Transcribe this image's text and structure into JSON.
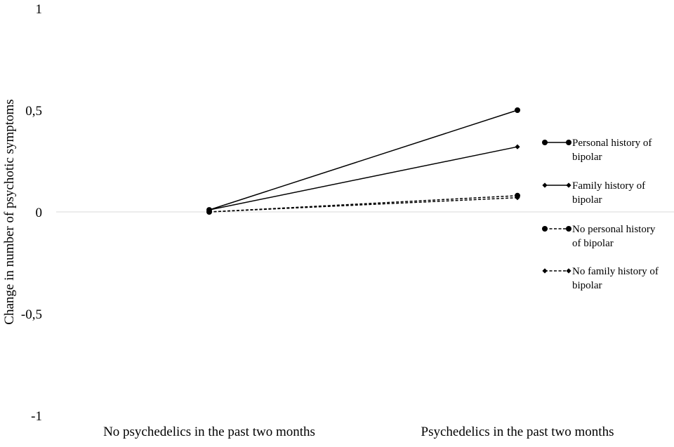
{
  "chart_data": {
    "type": "line",
    "title": "",
    "xlabel": "",
    "ylabel": "Change in number of psychotic symptoms",
    "categories": [
      "No psychedelics in the past two months",
      "Psychedelics in the past two months"
    ],
    "yticks": [
      "1",
      "0,5",
      "0",
      "-0,5",
      "-1"
    ],
    "ytick_values": [
      1,
      0.5,
      0,
      -0.5,
      -1
    ],
    "ylim": [
      -1,
      1
    ],
    "grid": false,
    "legend_position": "right",
    "series": [
      {
        "name": "Personal history of bipolar",
        "values": [
          0.01,
          0.5
        ],
        "marker": "circle",
        "dash": "solid",
        "legend_lines": [
          "Personal history of",
          "bipolar"
        ]
      },
      {
        "name": "Family history of bipolar",
        "values": [
          0.01,
          0.32
        ],
        "marker": "diamond",
        "dash": "solid",
        "legend_lines": [
          "Family history of",
          "bipolar"
        ]
      },
      {
        "name": "No personal history of bipolar",
        "values": [
          0.0,
          0.08
        ],
        "marker": "circle",
        "dash": "dashed",
        "legend_lines": [
          "No personal history",
          "of bipolar"
        ]
      },
      {
        "name": "No family history of bipolar",
        "values": [
          0.0,
          0.07
        ],
        "marker": "diamond",
        "dash": "dashed",
        "legend_lines": [
          "No family history of",
          "bipolar"
        ]
      }
    ],
    "colors": {
      "line": "#000000",
      "zero_line": "#d9d9d9"
    }
  }
}
